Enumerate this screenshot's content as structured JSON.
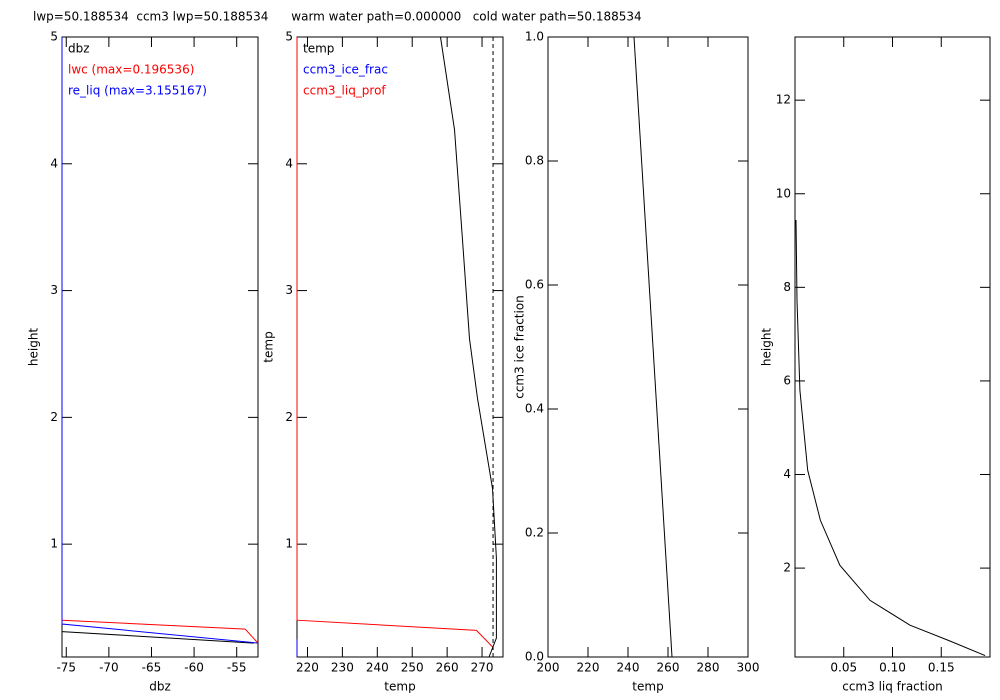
{
  "title": "lwp=50.188534  ccm3 lwp=50.188534      warm water path=0.000000   cold water path=50.188534",
  "chart_data": [
    {
      "type": "line",
      "xlabel": "dbz",
      "ylabel": "height",
      "xlim": [
        -75.5,
        -52.5
      ],
      "ylim": [
        0.11,
        5
      ],
      "xticks": [
        -75,
        -70,
        -65,
        -60,
        -55
      ],
      "yticks": [
        1,
        2,
        3,
        4,
        5
      ],
      "series": [
        {
          "name": "dbz",
          "color": "#000000",
          "x": [
            -75.5,
            -53
          ],
          "values": [
            0.31,
            0.22
          ]
        },
        {
          "name": "lwc (max=0.196536)",
          "color": "#ff0000",
          "x": [
            -75.5,
            -54,
            -52.5
          ],
          "values": [
            0.4,
            0.33,
            0.22
          ]
        },
        {
          "name": "re_liq (max=3.155167)",
          "color": "#0000ff",
          "x": [
            -75.5,
            -75.5,
            -52.5
          ],
          "values": [
            5,
            0.37,
            0.22
          ]
        }
      ]
    },
    {
      "type": "line",
      "xlabel": "temp",
      "ylabel": "temp",
      "xlim": [
        217,
        276
      ],
      "ylim": [
        0.11,
        5
      ],
      "xticks": [
        220,
        230,
        240,
        250,
        260,
        270
      ],
      "yticks": [
        1,
        2,
        3,
        4,
        5
      ],
      "vline": 273.15,
      "series": [
        {
          "name": "temp",
          "color": "#000000",
          "x": [
            258.1,
            262.1,
            264.4,
            266.4,
            268.7,
            273,
            274.1,
            274.1,
            272
          ],
          "values": [
            5,
            4.27,
            3.4,
            2.62,
            2.15,
            1.44,
            0.89,
            0.26,
            0.11
          ]
        },
        {
          "name": "ccm3_ice_frac",
          "color": "#0000ff",
          "x": [
            217,
            217
          ],
          "values": [
            0.11,
            0.25
          ]
        },
        {
          "name": "ccm3_liq_prof",
          "color": "#ff0000",
          "x": [
            217,
            217,
            268.4,
            273
          ],
          "values": [
            5,
            0.4,
            0.32,
            0.19
          ]
        }
      ]
    },
    {
      "type": "line",
      "xlabel": "temp",
      "ylabel": "ccm3 ice fraction",
      "xlim": [
        200,
        300
      ],
      "ylim": [
        0,
        1
      ],
      "xticks": [
        200,
        220,
        240,
        260,
        280,
        300
      ],
      "yticks": [
        {
          "value": 0,
          "label": "0.0"
        },
        0.2,
        0.4,
        0.6,
        0.8,
        {
          "value": 1,
          "label": "1.0"
        }
      ],
      "series": [
        {
          "color": "#000000",
          "x": [
            243,
            262
          ],
          "values": [
            1,
            0
          ]
        }
      ]
    },
    {
      "type": "line",
      "xlabel": "ccm3 liq fraction",
      "ylabel": "height",
      "xlim": [
        0,
        0.2
      ],
      "ylim": [
        0.1,
        13.35
      ],
      "xticks": [
        0.05,
        {
          "value": 0.1,
          "label": "0.10"
        },
        0.15
      ],
      "yticks": [
        2,
        4,
        6,
        8,
        10,
        12
      ],
      "series": [
        {
          "color": "#000000",
          "x": [
            0.001,
            0.002,
            0.005,
            0.013,
            0.026,
            0.046,
            0.077,
            0.118,
            0.158,
            0.195
          ],
          "values": [
            9.44,
            7.73,
            5.8,
            4.09,
            3.02,
            2.06,
            1.31,
            0.78,
            0.45,
            0.13
          ]
        }
      ]
    }
  ]
}
